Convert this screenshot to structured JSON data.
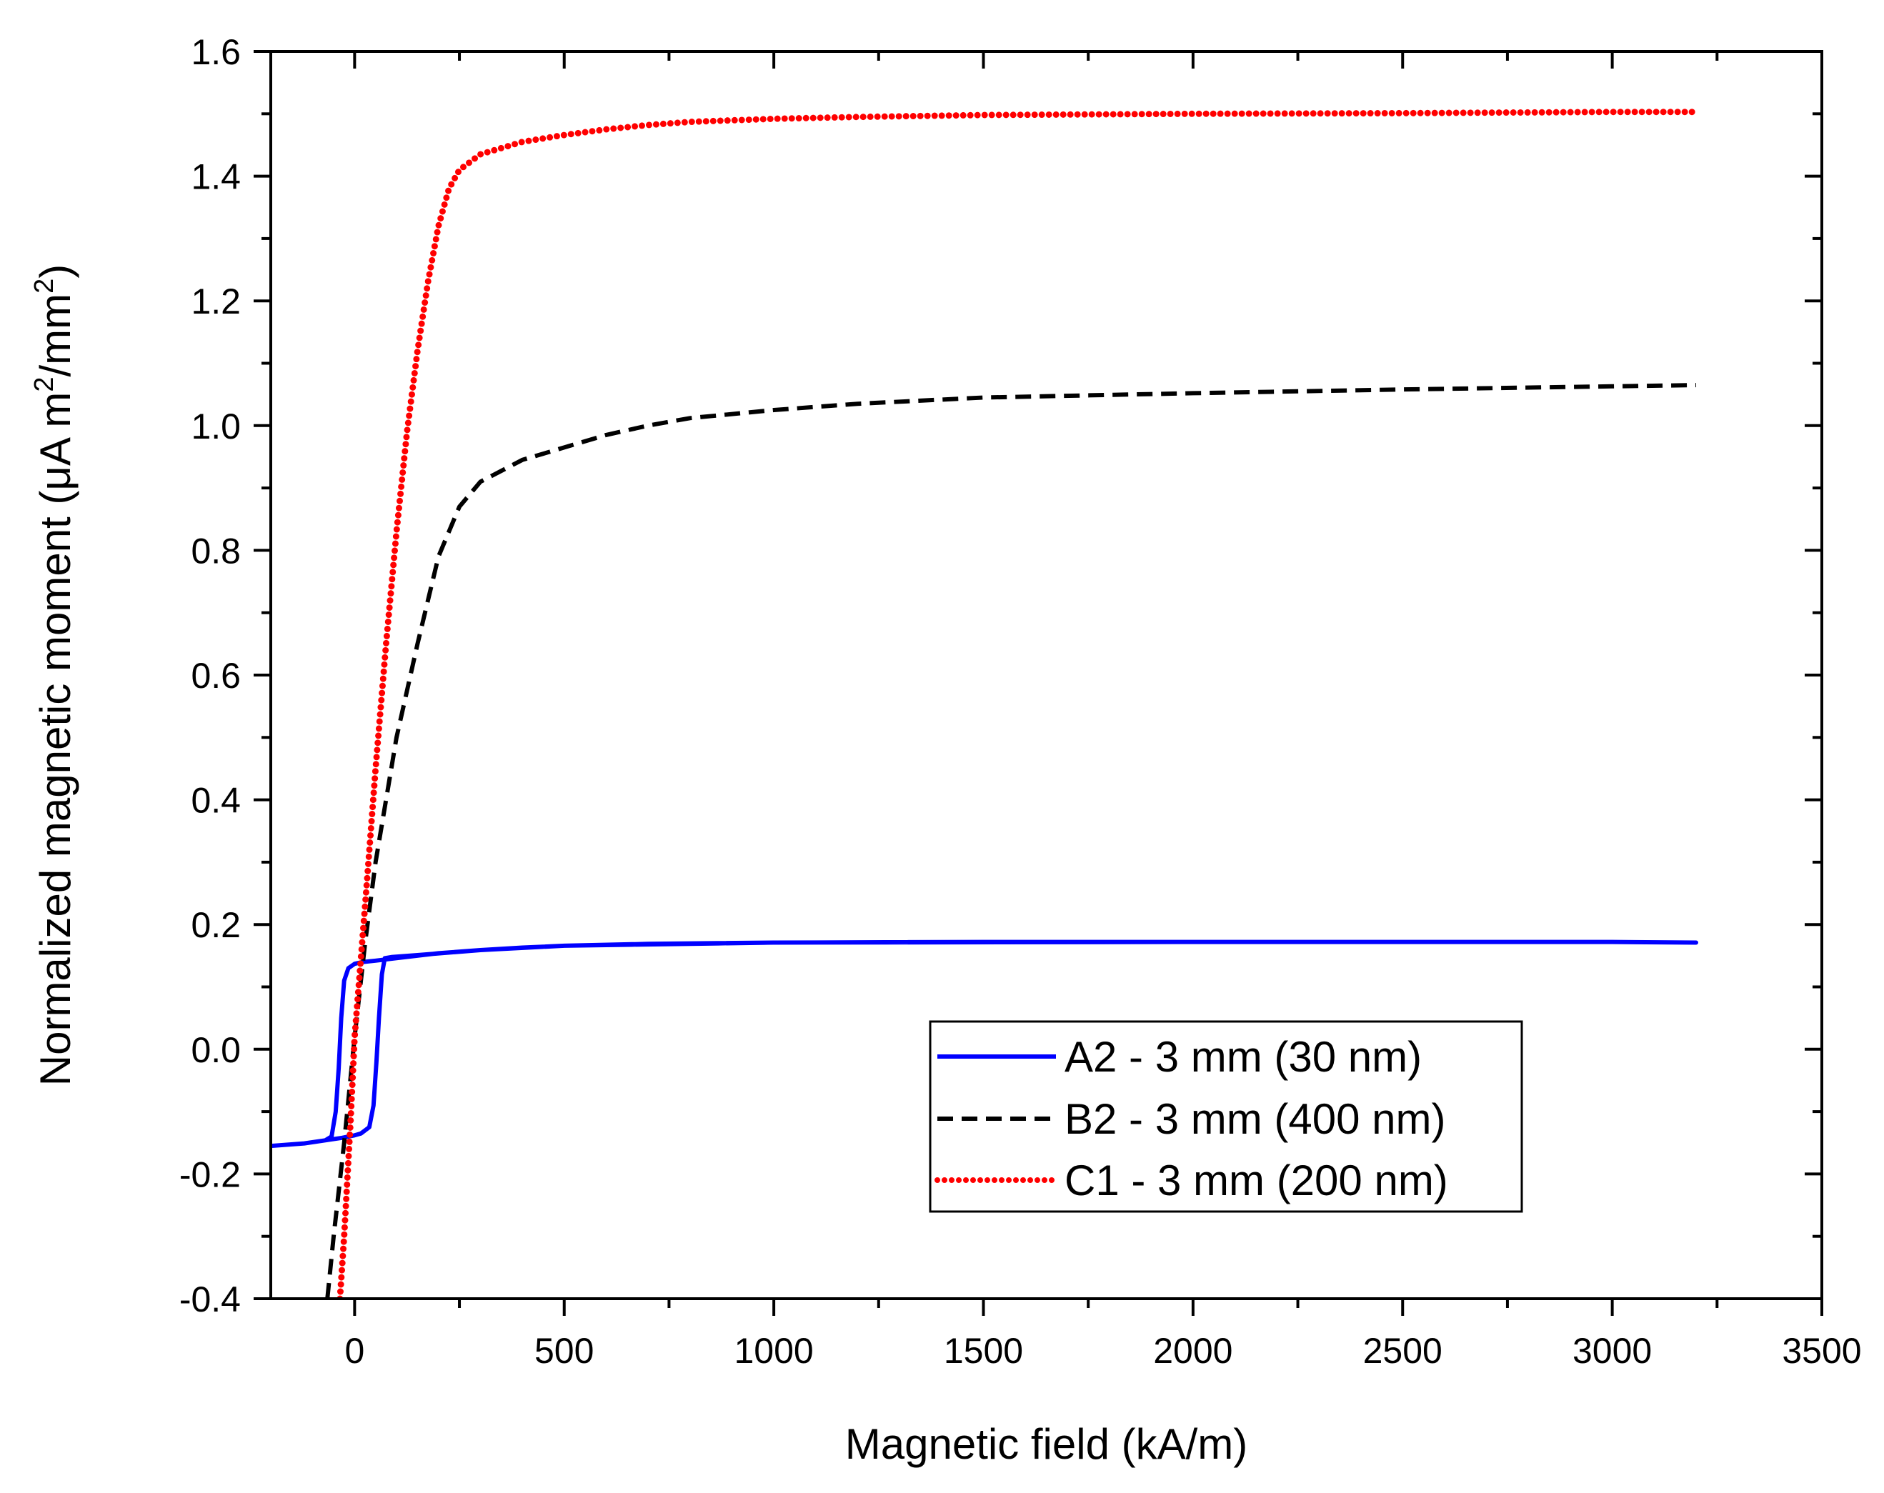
{
  "chart_data": {
    "type": "line",
    "title": "",
    "xlabel": "Magnetic field (kA/m)",
    "ylabel": {
      "main": "Normalized magnetic moment (",
      "mu": "μ",
      "unit_a": "A m",
      "sup1": "2",
      "slash": "/mm",
      "sup2": "2",
      "close": ")"
    },
    "xlim": [
      -200,
      3500
    ],
    "ylim": [
      -0.4,
      1.6
    ],
    "xticks": [
      0,
      500,
      1000,
      1500,
      2000,
      2500,
      3000,
      3500
    ],
    "xtick_labels": [
      "0",
      "500",
      "1000",
      "1500",
      "2000",
      "2500",
      "3000",
      "3500"
    ],
    "yticks": [
      -0.4,
      -0.2,
      0.0,
      0.2,
      0.4,
      0.6,
      0.8,
      1.0,
      1.2,
      1.4,
      1.6
    ],
    "ytick_labels": [
      "-0.4",
      "-0.2",
      "0.0",
      "0.2",
      "0.4",
      "0.6",
      "0.8",
      "1.0",
      "1.2",
      "1.4",
      "1.6"
    ],
    "grid": false,
    "legend_position": "lower-right",
    "series": [
      {
        "name": "A2 - 3 mm (30 nm)",
        "color": "#0000ff",
        "style": "solid",
        "points": [
          [
            -200,
            -0.155
          ],
          [
            -120,
            -0.151
          ],
          [
            -70,
            -0.146
          ],
          [
            -55,
            -0.14
          ],
          [
            -45,
            -0.1
          ],
          [
            -38,
            -0.03
          ],
          [
            -32,
            0.05
          ],
          [
            -25,
            0.11
          ],
          [
            -15,
            0.13
          ],
          [
            0,
            0.137
          ],
          [
            20,
            0.14
          ],
          [
            50,
            0.142
          ],
          [
            100,
            0.146
          ],
          [
            200,
            0.154
          ],
          [
            300,
            0.159
          ],
          [
            400,
            0.163
          ],
          [
            500,
            0.166
          ],
          [
            700,
            0.169
          ],
          [
            1000,
            0.171
          ],
          [
            1500,
            0.172
          ],
          [
            2000,
            0.172
          ],
          [
            2500,
            0.172
          ],
          [
            3000,
            0.172
          ],
          [
            3200,
            0.171
          ],
          [
            3000,
            0.172
          ],
          [
            2000,
            0.172
          ],
          [
            1000,
            0.171
          ],
          [
            500,
            0.166
          ],
          [
            300,
            0.159
          ],
          [
            150,
            0.151
          ],
          [
            90,
            0.148
          ],
          [
            72,
            0.146
          ],
          [
            65,
            0.12
          ],
          [
            58,
            0.05
          ],
          [
            52,
            -0.02
          ],
          [
            45,
            -0.09
          ],
          [
            35,
            -0.125
          ],
          [
            15,
            -0.135
          ],
          [
            0,
            -0.138
          ],
          [
            -30,
            -0.142
          ],
          [
            -70,
            -0.146
          ]
        ]
      },
      {
        "name": "B2 - 3 mm (400 nm)",
        "color": "#000000",
        "style": "dashed",
        "points": [
          [
            -65,
            -0.4
          ],
          [
            -50,
            -0.3
          ],
          [
            -25,
            -0.15
          ],
          [
            0,
            0.02
          ],
          [
            25,
            0.17
          ],
          [
            50,
            0.3
          ],
          [
            100,
            0.5
          ],
          [
            150,
            0.65
          ],
          [
            200,
            0.79
          ],
          [
            250,
            0.87
          ],
          [
            300,
            0.91
          ],
          [
            400,
            0.945
          ],
          [
            500,
            0.965
          ],
          [
            600,
            0.985
          ],
          [
            700,
            1.0
          ],
          [
            800,
            1.012
          ],
          [
            1000,
            1.025
          ],
          [
            1200,
            1.035
          ],
          [
            1500,
            1.045
          ],
          [
            2000,
            1.052
          ],
          [
            2500,
            1.058
          ],
          [
            3000,
            1.063
          ],
          [
            3200,
            1.065
          ]
        ]
      },
      {
        "name": "C1 - 3 mm (200 nm)",
        "color": "#ff0000",
        "style": "dotted",
        "points": [
          [
            -35,
            -0.4
          ],
          [
            -25,
            -0.3
          ],
          [
            -10,
            -0.12
          ],
          [
            0,
            0.02
          ],
          [
            25,
            0.23
          ],
          [
            50,
            0.45
          ],
          [
            75,
            0.65
          ],
          [
            100,
            0.83
          ],
          [
            125,
            0.99
          ],
          [
            150,
            1.12
          ],
          [
            175,
            1.23
          ],
          [
            200,
            1.32
          ],
          [
            225,
            1.38
          ],
          [
            250,
            1.41
          ],
          [
            300,
            1.435
          ],
          [
            400,
            1.455
          ],
          [
            500,
            1.466
          ],
          [
            600,
            1.475
          ],
          [
            700,
            1.482
          ],
          [
            800,
            1.487
          ],
          [
            1000,
            1.492
          ],
          [
            1200,
            1.495
          ],
          [
            1500,
            1.498
          ],
          [
            2000,
            1.5
          ],
          [
            2500,
            1.501
          ],
          [
            3000,
            1.503
          ],
          [
            3200,
            1.503
          ]
        ]
      }
    ]
  }
}
